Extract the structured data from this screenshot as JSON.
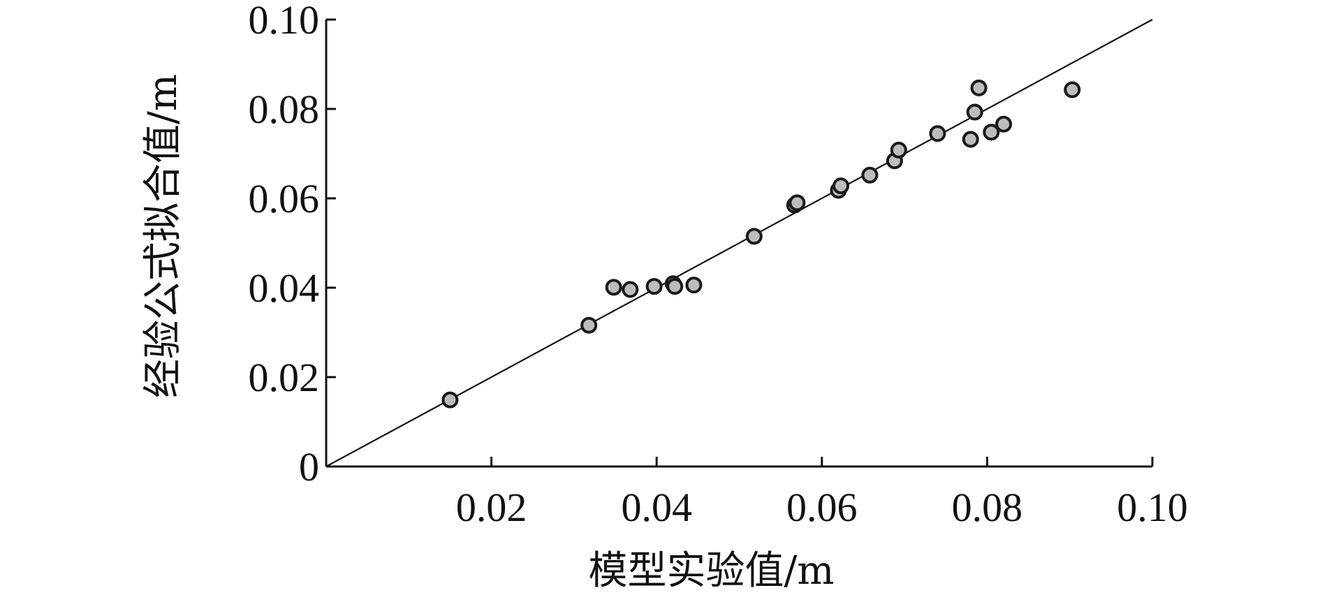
{
  "chart_data": {
    "type": "scatter",
    "title": "",
    "xlabel": "模型实验值/m",
    "ylabel": "经验公式拟合值/m",
    "xlim": [
      0,
      0.1
    ],
    "ylim": [
      0,
      0.1
    ],
    "grid": false,
    "legend": "none",
    "x_ticks": [
      {
        "value": 0.02,
        "label": "0.02"
      },
      {
        "value": 0.04,
        "label": "0.04"
      },
      {
        "value": 0.06,
        "label": "0.06"
      },
      {
        "value": 0.08,
        "label": "0.08"
      },
      {
        "value": 0.1,
        "label": "0.10"
      }
    ],
    "y_ticks": [
      {
        "value": 0,
        "label": "0"
      },
      {
        "value": 0.02,
        "label": "0.02"
      },
      {
        "value": 0.04,
        "label": "0.04"
      },
      {
        "value": 0.06,
        "label": "0.06"
      },
      {
        "value": 0.08,
        "label": "0.08"
      },
      {
        "value": 0.1,
        "label": "0.10"
      }
    ],
    "reference_line": {
      "x": [
        0,
        0.1
      ],
      "y": [
        0,
        0.1
      ]
    },
    "colors": {
      "marker_fill": "#bdbdbd",
      "marker_edge": "#1a1a1a",
      "axis": "#111111",
      "line": "#111111"
    },
    "series": [
      {
        "points": [
          {
            "x": 0.015,
            "y": 0.0149
          },
          {
            "x": 0.0318,
            "y": 0.0316
          },
          {
            "x": 0.0348,
            "y": 0.0401
          },
          {
            "x": 0.0368,
            "y": 0.0396
          },
          {
            "x": 0.0397,
            "y": 0.0403
          },
          {
            "x": 0.042,
            "y": 0.0409
          },
          {
            "x": 0.0422,
            "y": 0.0403
          },
          {
            "x": 0.0445,
            "y": 0.0406
          },
          {
            "x": 0.0518,
            "y": 0.0515
          },
          {
            "x": 0.0567,
            "y": 0.0585
          },
          {
            "x": 0.057,
            "y": 0.059
          },
          {
            "x": 0.062,
            "y": 0.0618
          },
          {
            "x": 0.0623,
            "y": 0.0628
          },
          {
            "x": 0.0658,
            "y": 0.0652
          },
          {
            "x": 0.0688,
            "y": 0.0684
          },
          {
            "x": 0.0693,
            "y": 0.0708
          },
          {
            "x": 0.074,
            "y": 0.0745
          },
          {
            "x": 0.078,
            "y": 0.0732
          },
          {
            "x": 0.0785,
            "y": 0.0793
          },
          {
            "x": 0.079,
            "y": 0.0847
          },
          {
            "x": 0.0805,
            "y": 0.0748
          },
          {
            "x": 0.082,
            "y": 0.0766
          },
          {
            "x": 0.0903,
            "y": 0.0843
          }
        ]
      }
    ]
  }
}
